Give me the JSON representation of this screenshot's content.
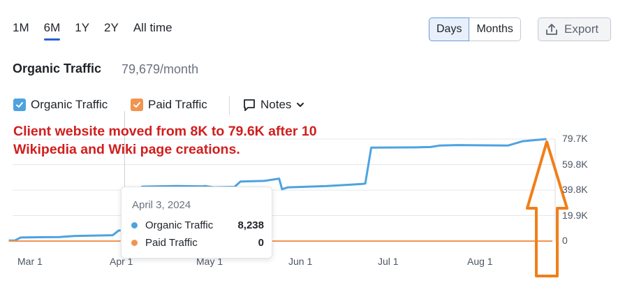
{
  "period_tabs": [
    {
      "label": "1M"
    },
    {
      "label": "6M",
      "active": true
    },
    {
      "label": "1Y"
    },
    {
      "label": "2Y"
    },
    {
      "label": "All time"
    }
  ],
  "view_toggle": {
    "days": "Days",
    "months": "Months",
    "selected": "Days"
  },
  "export_label": "Export",
  "summary": {
    "title": "Organic Traffic",
    "value": "79,679/month"
  },
  "legend": {
    "organic": {
      "label": "Organic Traffic",
      "color": "#4da3e0",
      "checked": true
    },
    "paid": {
      "label": "Paid Traffic",
      "color": "#f2944f",
      "checked": true
    },
    "notes": "Notes"
  },
  "annotation": "Client website moved from 8K to 79.6K after 10 Wikipedia and Wiki page creations.",
  "tooltip": {
    "date": "April 3, 2024",
    "rows": [
      {
        "name": "Organic Traffic",
        "value": "8,238"
      },
      {
        "name": "Paid Traffic",
        "value": "0"
      }
    ]
  },
  "chart_data": {
    "type": "line",
    "y_tick_labels": [
      "79.7K",
      "59.8K",
      "39.8K",
      "19.9K",
      "0"
    ],
    "x_tick_labels": [
      "Mar 1",
      "Apr 1",
      "May 1",
      "Jun 1",
      "Jul 1",
      "Aug 1"
    ],
    "ylim": [
      0,
      79700
    ],
    "grid": true,
    "series": [
      {
        "name": "Organic Traffic",
        "color": "#4da3e0",
        "points": [
          [
            "2024-02-24",
            400
          ],
          [
            "2024-02-26",
            400
          ],
          [
            "2024-02-28",
            2800
          ],
          [
            "2024-03-05",
            3000
          ],
          [
            "2024-03-12",
            3100
          ],
          [
            "2024-03-17",
            4000
          ],
          [
            "2024-03-24",
            4300
          ],
          [
            "2024-03-30",
            4600
          ],
          [
            "2024-04-01",
            8238
          ],
          [
            "2024-04-03",
            8238
          ],
          [
            "2024-04-04",
            21000
          ],
          [
            "2024-04-06",
            38500
          ],
          [
            "2024-04-09",
            42500
          ],
          [
            "2024-04-20",
            43000
          ],
          [
            "2024-04-29",
            42700
          ],
          [
            "2024-04-30",
            43000
          ],
          [
            "2024-05-03",
            42000
          ],
          [
            "2024-05-10",
            42300
          ],
          [
            "2024-05-12",
            46500
          ],
          [
            "2024-05-20",
            47000
          ],
          [
            "2024-05-25",
            48800
          ],
          [
            "2024-05-26",
            40500
          ],
          [
            "2024-05-28",
            42000
          ],
          [
            "2024-06-10",
            43000
          ],
          [
            "2024-06-22",
            44600
          ],
          [
            "2024-06-23",
            45000
          ],
          [
            "2024-06-25",
            73000
          ],
          [
            "2024-07-10",
            73200
          ],
          [
            "2024-07-15",
            73500
          ],
          [
            "2024-07-18",
            74600
          ],
          [
            "2024-07-24",
            75000
          ],
          [
            "2024-08-03",
            74800
          ],
          [
            "2024-08-10",
            74600
          ],
          [
            "2024-08-15",
            78000
          ],
          [
            "2024-08-23",
            79700
          ]
        ]
      },
      {
        "name": "Paid Traffic",
        "color": "#f2944f",
        "points": [
          [
            "2024-02-24",
            0
          ],
          [
            "2024-08-25",
            0
          ]
        ]
      }
    ],
    "hover_marker_date": "2024-04-03"
  },
  "arrow_color": "#f07f1a"
}
